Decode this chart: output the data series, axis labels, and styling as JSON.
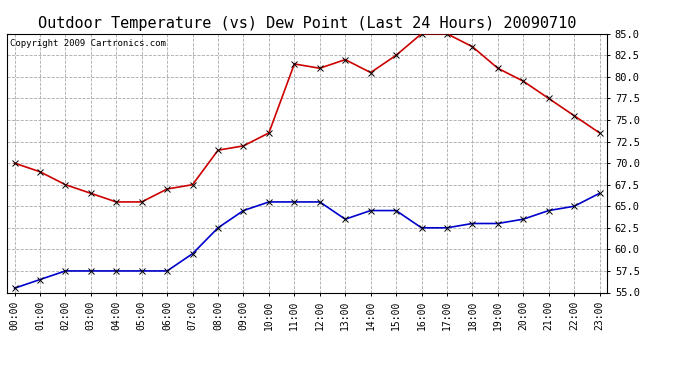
{
  "title": "Outdoor Temperature (vs) Dew Point (Last 24 Hours) 20090710",
  "copyright_text": "Copyright 2009 Cartronics.com",
  "hours": [
    "00:00",
    "01:00",
    "02:00",
    "03:00",
    "04:00",
    "05:00",
    "06:00",
    "07:00",
    "08:00",
    "09:00",
    "10:00",
    "11:00",
    "12:00",
    "13:00",
    "14:00",
    "15:00",
    "16:00",
    "17:00",
    "18:00",
    "19:00",
    "20:00",
    "21:00",
    "22:00",
    "23:00"
  ],
  "temp": [
    70.0,
    69.0,
    67.5,
    66.5,
    65.5,
    65.5,
    67.0,
    67.5,
    71.5,
    72.0,
    73.5,
    81.5,
    81.0,
    82.0,
    80.5,
    82.5,
    85.0,
    85.0,
    83.5,
    81.0,
    79.5,
    77.5,
    75.5,
    73.5
  ],
  "dew": [
    55.5,
    56.5,
    57.5,
    57.5,
    57.5,
    57.5,
    57.5,
    59.5,
    62.5,
    64.5,
    65.5,
    65.5,
    65.5,
    63.5,
    64.5,
    64.5,
    62.5,
    62.5,
    63.0,
    63.0,
    63.5,
    64.5,
    65.0,
    66.5
  ],
  "ylim": [
    55.0,
    85.0
  ],
  "yticks": [
    55.0,
    57.5,
    60.0,
    62.5,
    65.0,
    67.5,
    70.0,
    72.5,
    75.0,
    77.5,
    80.0,
    82.5,
    85.0
  ],
  "temp_color": "#cc0000",
  "dew_color": "#0000cc",
  "bg_color": "#ffffff",
  "plot_bg_color": "#ffffff",
  "grid_color": "#aaaaaa",
  "title_fontsize": 11,
  "copyright_fontsize": 6.5,
  "marker": "x",
  "marker_size": 4,
  "linewidth": 1.2
}
